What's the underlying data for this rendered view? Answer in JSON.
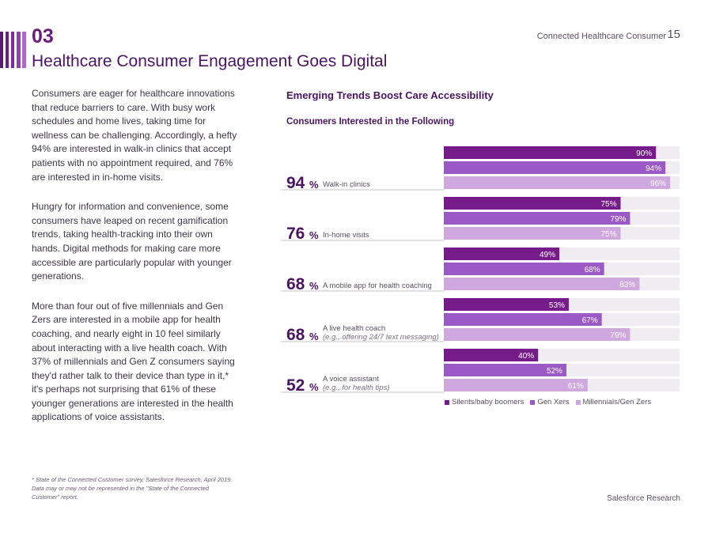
{
  "header": {
    "section_number": "03",
    "title": "Healthcare Consumer Engagement Goes Digital",
    "running_title": "Connected Healthcare Consumer",
    "page_number": "15"
  },
  "body": {
    "paragraphs": [
      "Consumers are eager for healthcare innovations that reduce barriers to care. With busy work schedules and home lives, taking time for wellness can be challenging. Accordingly, a hefty 94% are interested in walk-in clinics that accept patients with no appointment required, and 76% are interested in in-home visits.",
      "Hungry for information and convenience, some consumers have leaped on recent gamification trends, taking health-tracking into their own hands. Digital methods for making care more accessible are particularly popular with younger generations.",
      "More than four out of five millennials and Gen Zers are interested in a mobile app for health coaching, and nearly eight in 10 feel similarly about interacting with a live health coach. With 37% of millennials and Gen Z consumers saying they'd rather talk to their device than type in it,* it's perhaps not surprising that 61% of these younger generations are interested in the health applications of voice assistants."
    ]
  },
  "footnote": "* State of the Connected Customer survey, Salesforce Research, April 2019. Data may or may not be represented in the \"State of the Connected Customer\" report.",
  "footer": {
    "brand": "Salesforce Research"
  },
  "colors": {
    "silents": "#751c8a",
    "genx": "#9b59c6",
    "millennials": "#cfa8e0",
    "track": "#efedf1",
    "accent": "#4a1463"
  },
  "chart_data": {
    "type": "bar",
    "orientation": "horizontal",
    "title": "Emerging Trends Boost Care Accessibility",
    "subtitle": "Consumers Interested in the Following",
    "xlim": [
      0,
      100
    ],
    "value_suffix": "%",
    "categories": [
      {
        "overall": "94",
        "label": "Walk-in clinics",
        "sublabel": ""
      },
      {
        "overall": "76",
        "label": "In-home visits",
        "sublabel": ""
      },
      {
        "overall": "68",
        "label": "A mobile app for health coaching",
        "sublabel": ""
      },
      {
        "overall": "68",
        "label": "A live health coach",
        "sublabel": "(e.g., offering 24/7 text messaging)"
      },
      {
        "overall": "52",
        "label": "A voice assistant",
        "sublabel": "(e.g., for health tips)"
      }
    ],
    "series": [
      {
        "name": "Silents/baby boomers",
        "values": [
          90,
          75,
          49,
          53,
          40
        ]
      },
      {
        "name": "Gen Xers",
        "values": [
          94,
          79,
          68,
          67,
          52
        ]
      },
      {
        "name": "Millennials/Gen Zers",
        "values": [
          96,
          75,
          83,
          79,
          61
        ]
      }
    ],
    "legend": "bottom"
  }
}
